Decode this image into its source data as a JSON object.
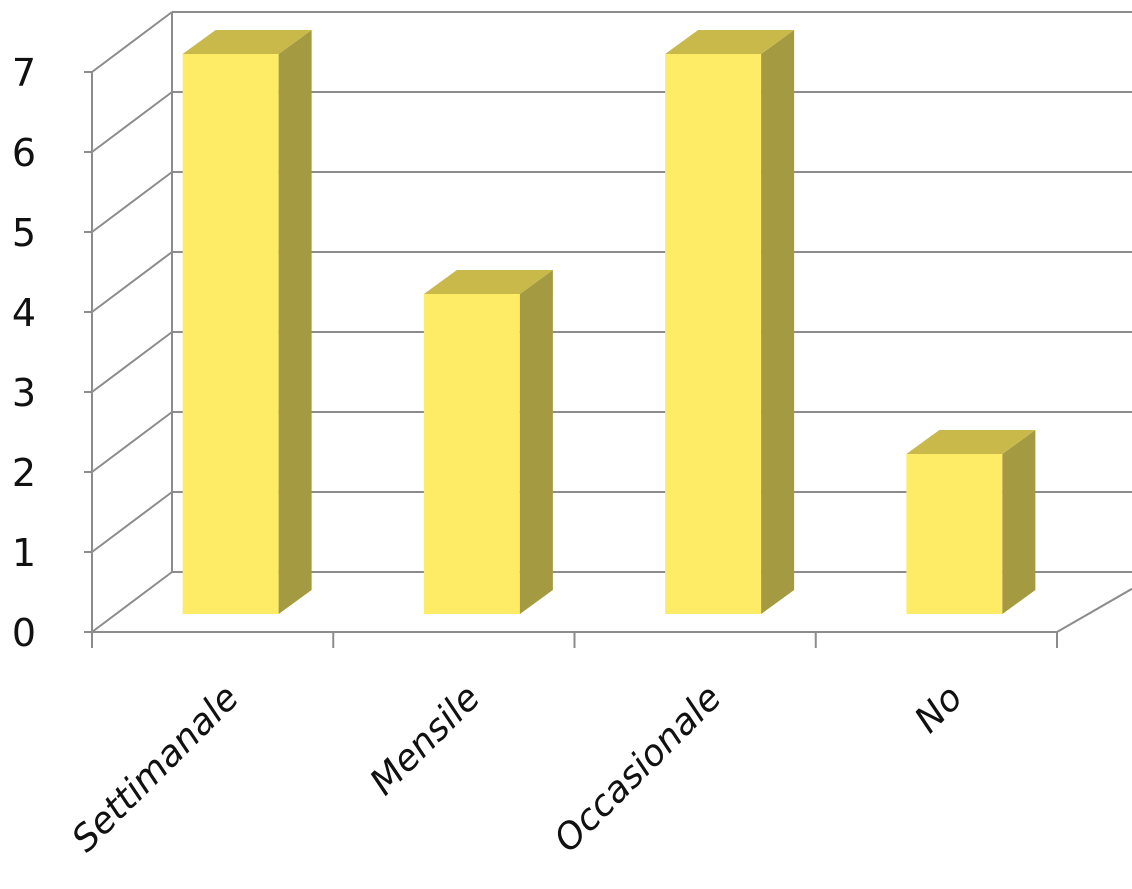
{
  "chart_data": {
    "type": "bar",
    "title": "",
    "xlabel": "",
    "ylabel": "",
    "categories": [
      "Settimanale",
      "Mensile",
      "Occasionale",
      "No"
    ],
    "values": [
      7,
      4,
      7,
      2
    ],
    "ylim": [
      0,
      7
    ],
    "yticks": [
      "0",
      "1",
      "2",
      "3",
      "4",
      "5",
      "6",
      "7"
    ],
    "grid": true,
    "style": "3d-column",
    "colors": {
      "bar_front": "#FFEC66",
      "bar_top": "#C9B84A",
      "bar_side": "#A39A42",
      "grid": "#8C8C8C"
    }
  }
}
